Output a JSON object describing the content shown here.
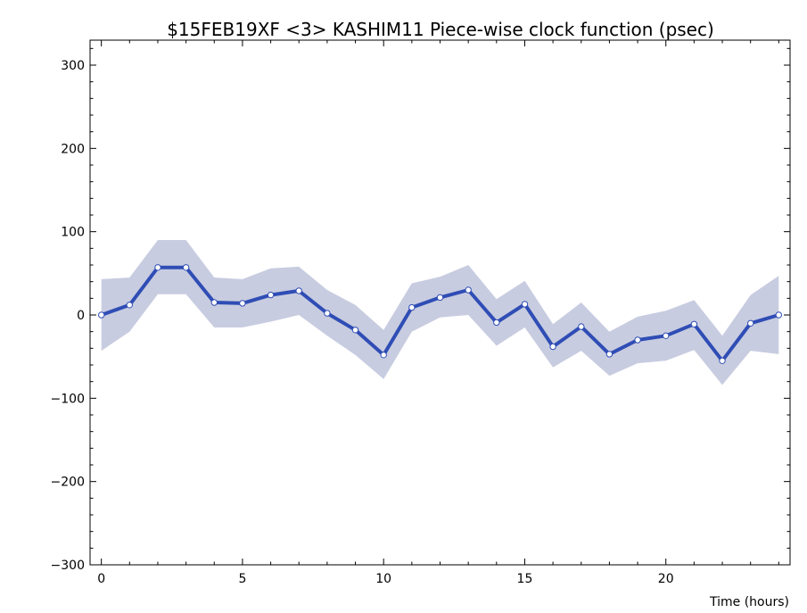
{
  "chart_data": {
    "type": "line",
    "title": "$15FEB19XF <3>  KASHIM11  Piece-wise clock function (psec)",
    "xlabel": "Time (hours)",
    "ylabel": "",
    "xlim": [
      -0.4,
      24.4
    ],
    "ylim": [
      -300,
      330
    ],
    "x_ticks": [
      0,
      5,
      10,
      15,
      20
    ],
    "x_tick_labels": [
      "0",
      "5",
      "10",
      "15",
      "20"
    ],
    "y_ticks": [
      -300,
      -200,
      -100,
      0,
      100,
      200,
      300
    ],
    "y_tick_labels": [
      "−300",
      "−200",
      "−100",
      "0",
      "100",
      "200",
      "300"
    ],
    "grid": false,
    "x": [
      0,
      1,
      2,
      3,
      4,
      5,
      6,
      7,
      8,
      9,
      10,
      11,
      12,
      13,
      14,
      15,
      16,
      17,
      18,
      19,
      20,
      21,
      22,
      23,
      24
    ],
    "series": [
      {
        "values": [
          0,
          12,
          57,
          57,
          15,
          14,
          24,
          29,
          2,
          -18,
          -48,
          9,
          21,
          30,
          -9,
          13,
          -38,
          -14,
          -47,
          -30,
          -25,
          -11,
          -55,
          -10,
          0
        ],
        "lower": [
          -43,
          -20,
          25,
          25,
          -15,
          -15,
          -8,
          0,
          -25,
          -48,
          -77,
          -20,
          -3,
          0,
          -37,
          -15,
          -63,
          -43,
          -73,
          -58,
          -55,
          -42,
          -84,
          -43,
          -47
        ],
        "upper": [
          43,
          45,
          90,
          90,
          45,
          43,
          56,
          58,
          30,
          12,
          -18,
          38,
          46,
          60,
          19,
          41,
          -11,
          15,
          -20,
          -2,
          5,
          18,
          -25,
          24,
          47
        ]
      }
    ],
    "colors": {
      "line": "#2f4db5",
      "band": "#c8cce0",
      "marker_fill": "#ffffff",
      "marker_stroke": "#2f4db5",
      "axis": "#000000"
    }
  }
}
